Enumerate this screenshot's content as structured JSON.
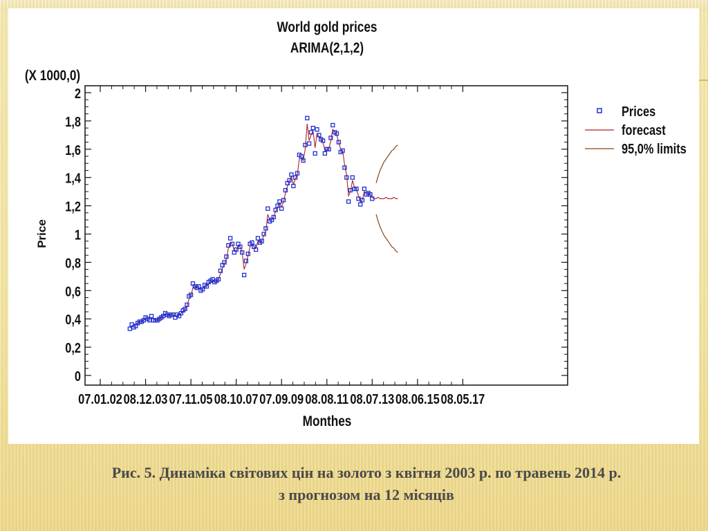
{
  "slide": {
    "caption_line1": "Рис. 5.  Динаміка світових цін на золото з квітня 2003 р. по травень 2014 р.",
    "caption_line2": "з прогнозом на 12 місяців"
  },
  "chart_data": {
    "type": "scatter",
    "title": "World gold prices",
    "subtitle": "ARIMA(2,1,2)",
    "xlabel": "Monthes",
    "ylabel": "Price",
    "y_multiplier_label": "(X 1000,0)",
    "ylim": [
      0,
      2
    ],
    "y_ticks": [
      "0",
      "0,2",
      "0,4",
      "0,6",
      "0,8",
      "1",
      "1,2",
      "1,4",
      "1,6",
      "1,8",
      "2"
    ],
    "y_tick_values": [
      0,
      0.2,
      0.4,
      0.6,
      0.8,
      1.0,
      1.2,
      1.4,
      1.6,
      1.8,
      2.0
    ],
    "x_ticks": [
      "07.01.02",
      "08.12.03",
      "07.11.05",
      "08.10.07",
      "07.09.09",
      "08.08.11",
      "08.07.13",
      "08.06.15",
      "08.05.17"
    ],
    "x_tick_months": [
      0,
      23,
      46,
      69,
      92,
      115,
      138,
      161,
      184
    ],
    "legend_position": "right",
    "legend": [
      "Prices",
      "forecast",
      "95,0% limits"
    ],
    "colors": {
      "prices": "#1f2fd0",
      "forecast": "#b02020",
      "limits": "#8b4513"
    },
    "series": [
      {
        "name": "Prices",
        "marker": "square",
        "start_month": 15,
        "values": [
          0.33,
          0.36,
          0.34,
          0.35,
          0.37,
          0.38,
          0.38,
          0.39,
          0.41,
          0.4,
          0.39,
          0.42,
          0.39,
          0.39,
          0.39,
          0.4,
          0.41,
          0.42,
          0.44,
          0.43,
          0.42,
          0.43,
          0.43,
          0.41,
          0.43,
          0.42,
          0.44,
          0.46,
          0.47,
          0.5,
          0.56,
          0.57,
          0.65,
          0.63,
          0.62,
          0.63,
          0.6,
          0.61,
          0.64,
          0.63,
          0.66,
          0.67,
          0.68,
          0.66,
          0.67,
          0.68,
          0.74,
          0.78,
          0.8,
          0.84,
          0.92,
          0.97,
          0.93,
          0.87,
          0.89,
          0.93,
          0.91,
          0.87,
          0.71,
          0.81,
          0.86,
          0.93,
          0.94,
          0.91,
          0.89,
          0.97,
          0.94,
          0.95,
          1.0,
          1.04,
          1.18,
          1.09,
          1.1,
          1.12,
          1.17,
          1.2,
          1.23,
          1.18,
          1.24,
          1.31,
          1.36,
          1.38,
          1.42,
          1.34,
          1.4,
          1.43,
          1.56,
          1.55,
          1.52,
          1.63,
          1.82,
          1.64,
          1.72,
          1.75,
          1.57,
          1.74,
          1.7,
          1.67,
          1.66,
          1.57,
          1.6,
          1.6,
          1.68,
          1.77,
          1.72,
          1.71,
          1.65,
          1.58,
          1.59,
          1.47,
          1.4,
          1.23,
          1.31,
          1.4,
          1.32,
          1.32,
          1.25,
          1.21,
          1.24,
          1.32,
          1.28,
          1.29,
          1.28,
          1.25
        ]
      },
      {
        "name": "forecast",
        "start_month": 15,
        "values": [
          0.34,
          0.34,
          0.36,
          0.36,
          0.37,
          0.38,
          0.38,
          0.39,
          0.4,
          0.4,
          0.4,
          0.41,
          0.4,
          0.39,
          0.39,
          0.4,
          0.41,
          0.42,
          0.43,
          0.43,
          0.42,
          0.43,
          0.43,
          0.42,
          0.42,
          0.43,
          0.44,
          0.45,
          0.46,
          0.49,
          0.54,
          0.56,
          0.62,
          0.63,
          0.62,
          0.62,
          0.61,
          0.61,
          0.63,
          0.63,
          0.65,
          0.66,
          0.67,
          0.66,
          0.66,
          0.68,
          0.72,
          0.76,
          0.79,
          0.82,
          0.9,
          0.94,
          0.93,
          0.88,
          0.88,
          0.92,
          0.91,
          0.87,
          0.75,
          0.79,
          0.85,
          0.91,
          0.93,
          0.91,
          0.9,
          0.95,
          0.94,
          0.95,
          0.99,
          1.02,
          1.14,
          1.1,
          1.1,
          1.12,
          1.16,
          1.19,
          1.22,
          1.19,
          1.23,
          1.29,
          1.34,
          1.37,
          1.41,
          1.35,
          1.39,
          1.42,
          1.53,
          1.54,
          1.52,
          1.6,
          1.78,
          1.66,
          1.7,
          1.73,
          1.61,
          1.71,
          1.69,
          1.67,
          1.65,
          1.59,
          1.6,
          1.6,
          1.66,
          1.74,
          1.72,
          1.7,
          1.65,
          1.6,
          1.59,
          1.49,
          1.42,
          1.27,
          1.3,
          1.38,
          1.33,
          1.32,
          1.27,
          1.23,
          1.24,
          1.3,
          1.29,
          1.29,
          1.28,
          1.26,
          1.25,
          1.25,
          1.26,
          1.25,
          1.25,
          1.25,
          1.26,
          1.25,
          1.25,
          1.25,
          1.26,
          1.25,
          1.25
        ]
      },
      {
        "name": "95,0% limits",
        "type": "band",
        "start_month": 140,
        "upper": [
          1.36,
          1.41,
          1.45,
          1.48,
          1.51,
          1.53,
          1.55,
          1.57,
          1.59,
          1.6,
          1.62,
          1.63
        ],
        "lower": [
          1.14,
          1.09,
          1.05,
          1.02,
          0.99,
          0.97,
          0.95,
          0.93,
          0.91,
          0.9,
          0.88,
          0.87
        ]
      }
    ]
  }
}
